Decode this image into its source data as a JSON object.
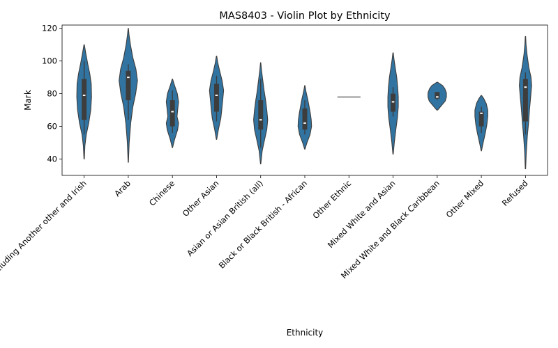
{
  "chart_data": {
    "type": "violin",
    "title": "MAS8403 - Violin Plot by Ethnicity",
    "xlabel": "Ethnicity",
    "ylabel": "Mark",
    "ylim": [
      30,
      122
    ],
    "yticks": [
      40,
      60,
      80,
      100,
      120
    ],
    "grid": false,
    "legend": "none",
    "color": "#3274a1",
    "edge_color": "#3d3d3d",
    "box_color": "#3d3d3d",
    "categories": [
      "White including Another other and Irish",
      "Arab",
      "Chinese",
      "Other Asian",
      "Asian or Asian British (all)",
      "Black or Black British - African",
      "Other Ethnic",
      "Mixed White and Asian",
      "Mixed White and Black Caribbean",
      "Other Mixed",
      "Refused"
    ],
    "violins": [
      {
        "category": "White including Another other and Irish",
        "min": 40,
        "max": 110,
        "whisker_low": 55,
        "q1": 64,
        "median": 79,
        "q3": 89,
        "whisker_high": 100,
        "profile": [
          [
            40,
            0.1
          ],
          [
            48,
            0.5
          ],
          [
            55,
            1.4
          ],
          [
            62,
            3.0
          ],
          [
            70,
            4.3
          ],
          [
            78,
            4.8
          ],
          [
            86,
            4.6
          ],
          [
            92,
            3.7
          ],
          [
            98,
            2.4
          ],
          [
            104,
            1.2
          ],
          [
            110,
            0.1
          ]
        ]
      },
      {
        "category": "Arab",
        "min": 38,
        "max": 120,
        "whisker_low": 64,
        "q1": 76,
        "median": 90,
        "q3": 94,
        "whisker_high": 98,
        "profile": [
          [
            38,
            0.1
          ],
          [
            50,
            0.6
          ],
          [
            62,
            1.6
          ],
          [
            72,
            3.0
          ],
          [
            80,
            4.8
          ],
          [
            88,
            6.0
          ],
          [
            95,
            5.0
          ],
          [
            102,
            3.0
          ],
          [
            110,
            1.4
          ],
          [
            116,
            0.5
          ],
          [
            120,
            0.1
          ]
        ]
      },
      {
        "category": "Chinese",
        "min": 47,
        "max": 89,
        "whisker_low": 56,
        "q1": 60,
        "median": 69,
        "q3": 76,
        "whisker_high": 82,
        "profile": [
          [
            47,
            0.1
          ],
          [
            52,
            1.4
          ],
          [
            58,
            3.4
          ],
          [
            62,
            4.0
          ],
          [
            66,
            3.0
          ],
          [
            70,
            3.4
          ],
          [
            75,
            4.0
          ],
          [
            80,
            3.2
          ],
          [
            85,
            1.4
          ],
          [
            89,
            0.1
          ]
        ]
      },
      {
        "category": "Other Asian",
        "min": 52,
        "max": 103,
        "whisker_low": 63,
        "q1": 69,
        "median": 79,
        "q3": 86,
        "whisker_high": 91,
        "profile": [
          [
            52,
            0.1
          ],
          [
            58,
            1.2
          ],
          [
            65,
            2.8
          ],
          [
            70,
            3.4
          ],
          [
            76,
            4.0
          ],
          [
            82,
            4.6
          ],
          [
            88,
            3.6
          ],
          [
            94,
            2.0
          ],
          [
            99,
            0.8
          ],
          [
            103,
            0.1
          ]
        ]
      },
      {
        "category": "Asian or Asian British (all)",
        "min": 37,
        "max": 99,
        "whisker_low": 47,
        "q1": 58,
        "median": 64,
        "q3": 76,
        "whisker_high": 89,
        "profile": [
          [
            37,
            0.1
          ],
          [
            45,
            1.0
          ],
          [
            52,
            2.6
          ],
          [
            58,
            4.0
          ],
          [
            64,
            4.6
          ],
          [
            70,
            4.0
          ],
          [
            76,
            3.2
          ],
          [
            82,
            2.2
          ],
          [
            88,
            1.4
          ],
          [
            94,
            0.6
          ],
          [
            99,
            0.1
          ]
        ]
      },
      {
        "category": "Black or Black British - African",
        "min": 46,
        "max": 85,
        "whisker_low": 55,
        "q1": 58,
        "median": 62,
        "q3": 71,
        "whisker_high": 76,
        "profile": [
          [
            46,
            0.1
          ],
          [
            50,
            1.4
          ],
          [
            55,
            3.4
          ],
          [
            60,
            4.4
          ],
          [
            64,
            4.2
          ],
          [
            68,
            3.6
          ],
          [
            72,
            2.8
          ],
          [
            77,
            1.8
          ],
          [
            81,
            0.8
          ],
          [
            85,
            0.1
          ]
        ]
      },
      {
        "category": "Other Ethnic",
        "min": 78,
        "max": 78,
        "whisker_low": 78,
        "q1": 78,
        "median": 78,
        "q3": 78,
        "whisker_high": 78,
        "profile": [
          [
            77.9,
            5.8
          ],
          [
            78.1,
            5.8
          ]
        ]
      },
      {
        "category": "Mixed White and Asian",
        "min": 43,
        "max": 105,
        "whisker_low": 66,
        "q1": 69,
        "median": 75,
        "q3": 80,
        "whisker_high": 84,
        "profile": [
          [
            43,
            0.1
          ],
          [
            50,
            0.8
          ],
          [
            58,
            1.8
          ],
          [
            65,
            2.8
          ],
          [
            72,
            3.4
          ],
          [
            78,
            3.4
          ],
          [
            84,
            3.0
          ],
          [
            90,
            2.4
          ],
          [
            96,
            1.4
          ],
          [
            101,
            0.6
          ],
          [
            105,
            0.1
          ]
        ]
      },
      {
        "category": "Mixed White and Black Caribbean",
        "min": 70,
        "max": 87,
        "whisker_low": 76,
        "q1": 77,
        "median": 78,
        "q3": 81,
        "whisker_high": 81,
        "profile": [
          [
            70,
            0.3
          ],
          [
            73,
            3.0
          ],
          [
            75.5,
            5.2
          ],
          [
            78,
            6.0
          ],
          [
            80.5,
            6.0
          ],
          [
            83,
            5.0
          ],
          [
            85,
            3.5
          ],
          [
            87,
            0.3
          ]
        ]
      },
      {
        "category": "Other Mixed",
        "min": 45,
        "max": 79,
        "whisker_low": 56,
        "q1": 60,
        "median": 68,
        "q3": 69,
        "whisker_high": 72,
        "profile": [
          [
            45,
            0.1
          ],
          [
            50,
            1.2
          ],
          [
            56,
            2.6
          ],
          [
            61,
            3.6
          ],
          [
            66,
            4.2
          ],
          [
            70,
            4.2
          ],
          [
            74,
            3.2
          ],
          [
            77,
            1.6
          ],
          [
            79,
            0.1
          ]
        ]
      },
      {
        "category": "Refused",
        "min": 34,
        "max": 115,
        "whisker_low": 55,
        "q1": 63,
        "median": 84,
        "q3": 89,
        "whisker_high": 93,
        "profile": [
          [
            34,
            0.1
          ],
          [
            44,
            0.5
          ],
          [
            54,
            1.2
          ],
          [
            62,
            2.0
          ],
          [
            70,
            2.6
          ],
          [
            78,
            3.4
          ],
          [
            85,
            4.0
          ],
          [
            90,
            3.6
          ],
          [
            96,
            2.2
          ],
          [
            104,
            1.0
          ],
          [
            110,
            0.4
          ],
          [
            115,
            0.1
          ]
        ]
      }
    ]
  }
}
